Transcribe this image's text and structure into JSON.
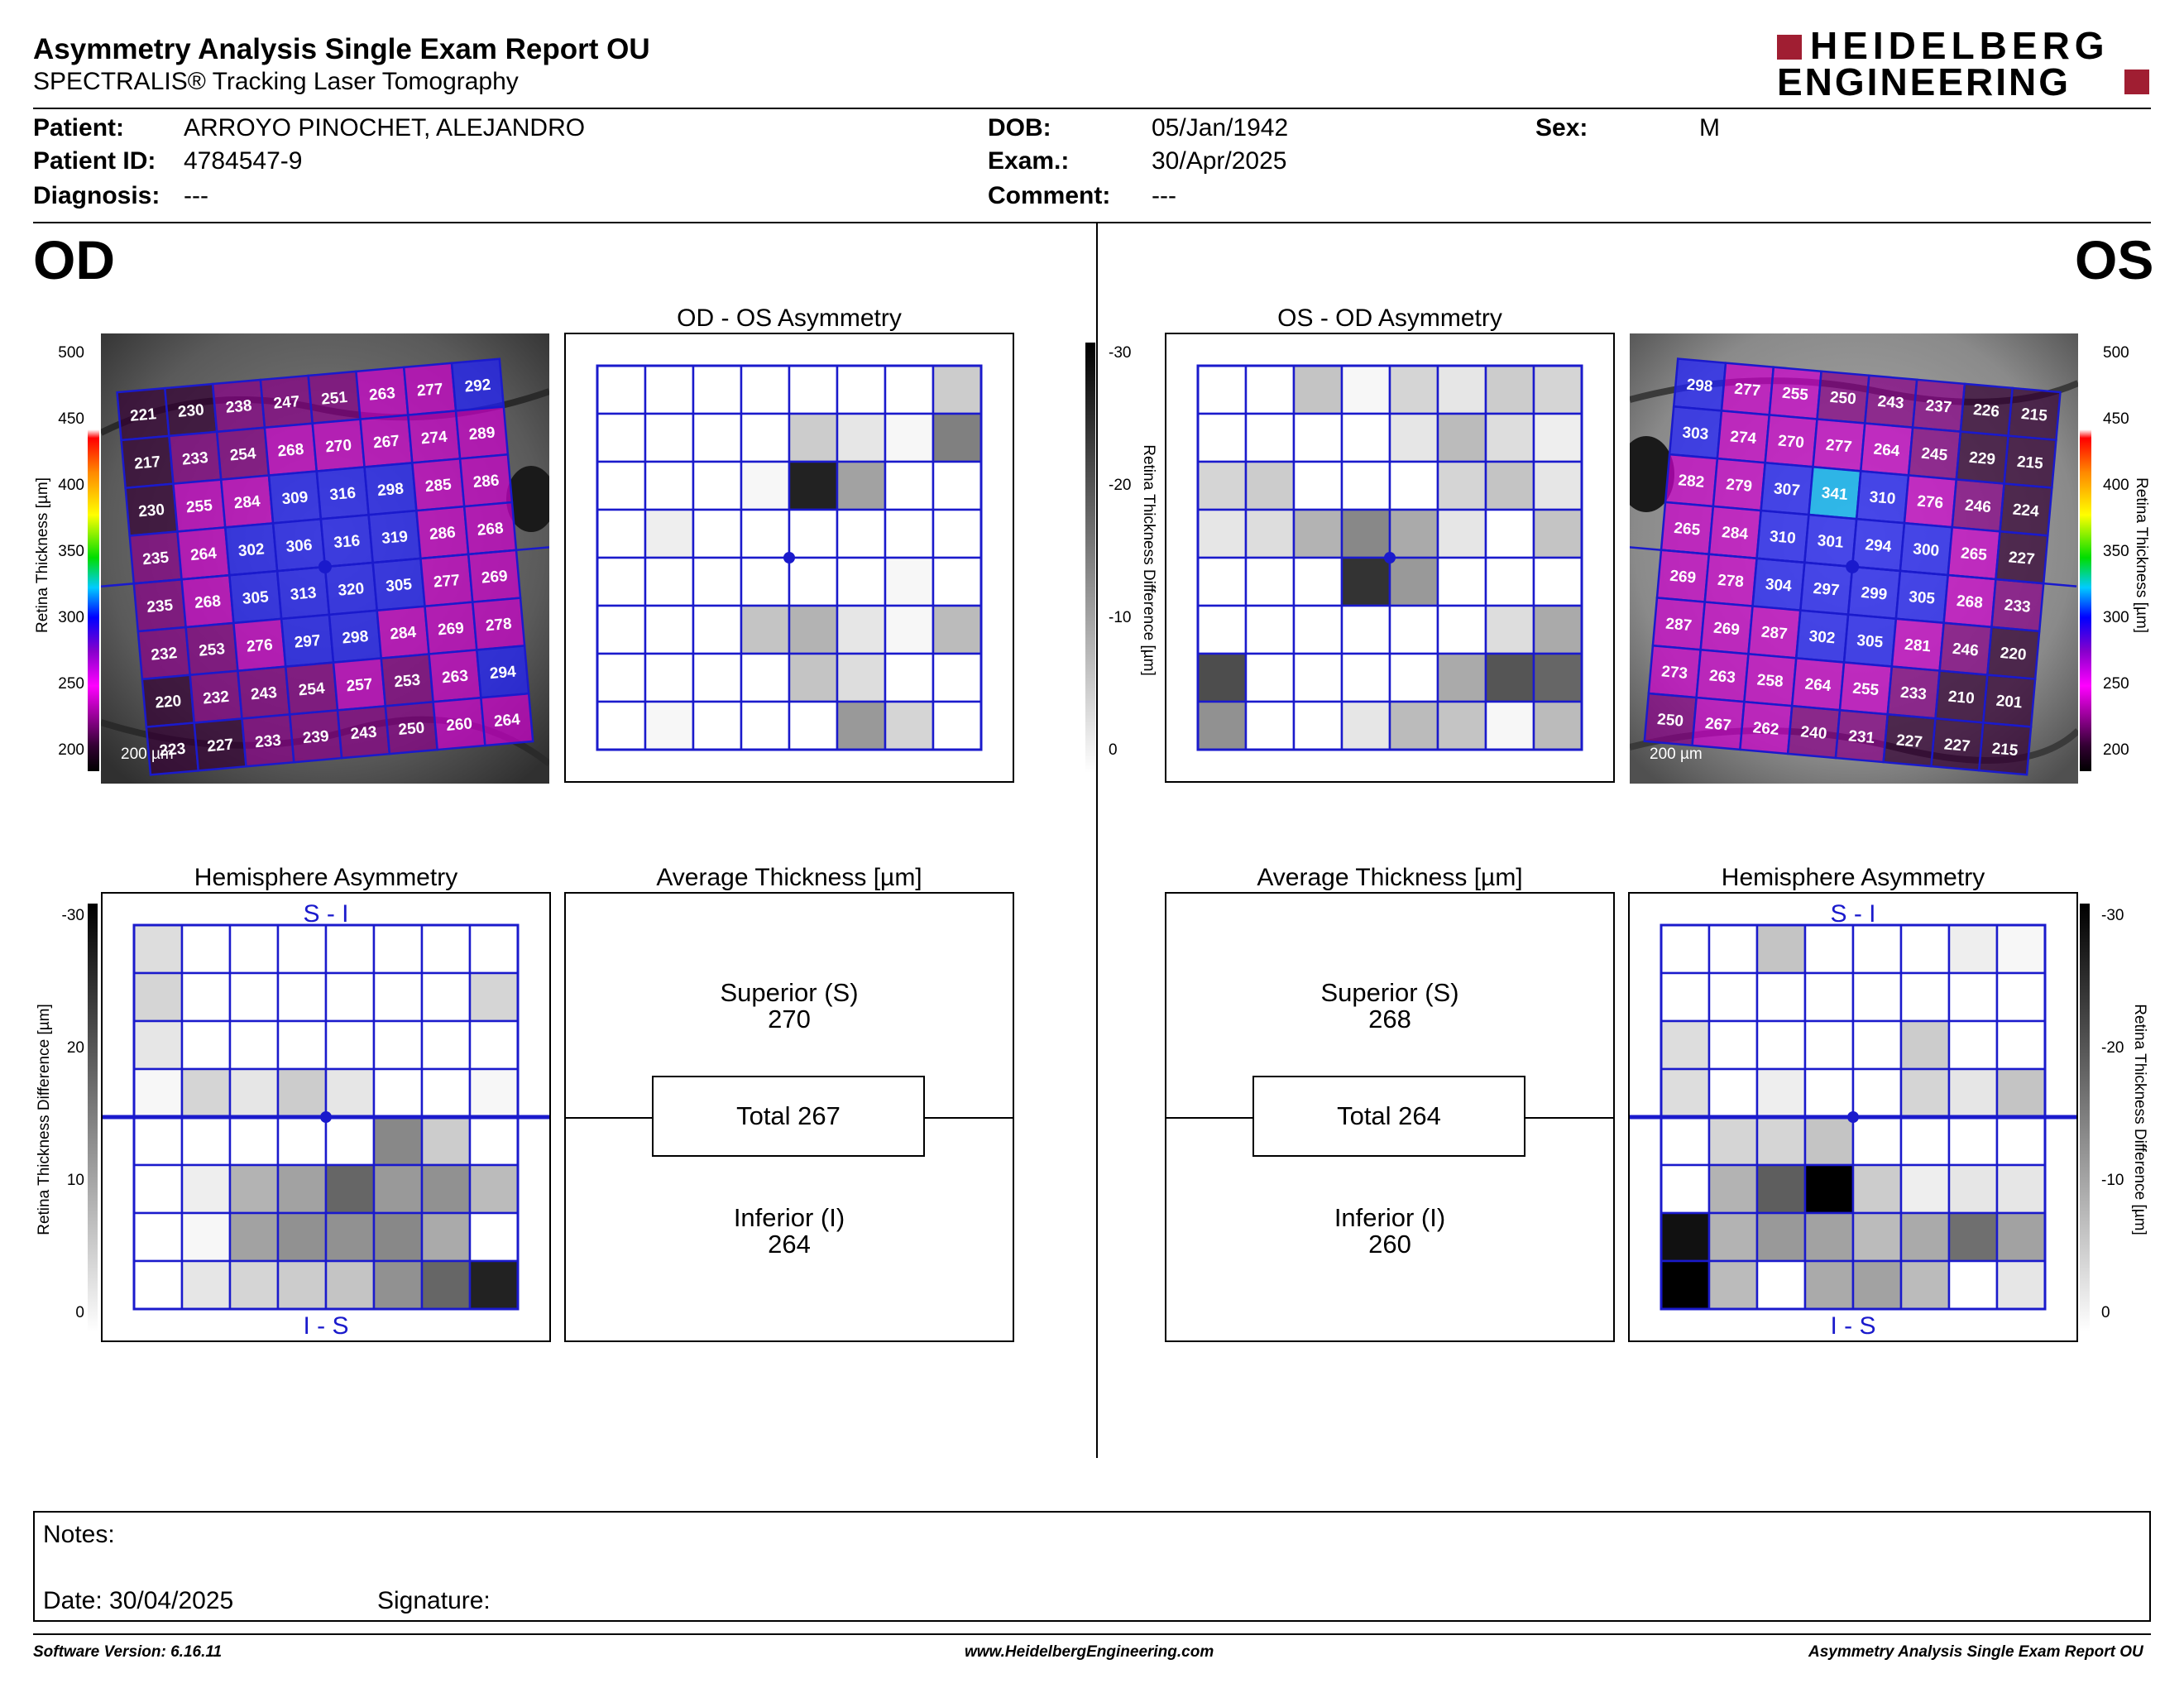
{
  "header": {
    "title": "Asymmetry Analysis Single Exam Report OU",
    "subtitle": "SPECTRALIS® Tracking Laser Tomography",
    "logo_line1": "HEIDELBERG",
    "logo_line2": "ENGINEERING"
  },
  "patient": {
    "patient_label": "Patient:",
    "patient_value": "ARROYO PINOCHET, ALEJANDRO",
    "id_label": "Patient ID:",
    "id_value": "4784547-9",
    "diagnosis_label": "Diagnosis:",
    "diagnosis_value": "---",
    "dob_label": "DOB:",
    "dob_value": "05/Jan/1942",
    "exam_label": "Exam.:",
    "exam_value": "30/Apr/2025",
    "comment_label": "Comment:",
    "comment_value": "---",
    "sex_label": "Sex:",
    "sex_value": "M"
  },
  "od": {
    "eye_label": "OD",
    "asym_title": "OD - OS Asymmetry",
    "hemi_title": "Hemisphere Asymmetry",
    "avg_title": "Average Thickness [µm]",
    "superior_label": "Superior (S)",
    "superior_value": "270",
    "total_label": "Total 267",
    "inferior_label": "Inferior (I)",
    "inferior_value": "264",
    "scale": "200 µm",
    "hemi_top": "S - I",
    "hemi_bottom": "I - S",
    "thickness": [
      [
        221,
        230,
        238,
        247,
        251,
        263,
        277,
        292
      ],
      [
        217,
        233,
        254,
        268,
        270,
        267,
        274,
        289
      ],
      [
        230,
        255,
        284,
        309,
        316,
        298,
        285,
        286
      ],
      [
        235,
        264,
        302,
        306,
        316,
        319,
        286,
        268
      ],
      [
        235,
        268,
        305,
        313,
        320,
        305,
        277,
        269
      ],
      [
        232,
        253,
        276,
        297,
        298,
        284,
        269,
        278
      ],
      [
        220,
        232,
        243,
        254,
        257,
        253,
        263,
        294
      ],
      [
        223,
        227,
        233,
        239,
        243,
        250,
        260,
        264
      ]
    ],
    "asym_gray": [
      [
        0,
        0,
        0,
        0,
        0,
        0,
        0,
        6
      ],
      [
        0,
        0,
        0,
        0,
        6,
        3,
        1,
        15
      ],
      [
        0,
        0,
        0,
        1,
        26,
        11,
        0,
        0
      ],
      [
        0,
        2,
        0,
        0,
        0,
        0,
        0,
        0
      ],
      [
        0,
        0,
        0,
        0,
        0,
        0,
        1,
        0
      ],
      [
        0,
        0,
        0,
        7,
        9,
        3,
        1,
        8
      ],
      [
        0,
        0,
        0,
        0,
        7,
        4,
        0,
        0
      ],
      [
        0,
        1,
        0,
        0,
        0,
        12,
        5,
        0
      ]
    ],
    "hemi_gray": [
      [
        4,
        0,
        0,
        0,
        0,
        0,
        0,
        0
      ],
      [
        5,
        0,
        0,
        0,
        0,
        0,
        0,
        5
      ],
      [
        3,
        0,
        0,
        0,
        0,
        0,
        0,
        0
      ],
      [
        1,
        5,
        3,
        6,
        3,
        0,
        0,
        1
      ],
      [
        0,
        0,
        0,
        0,
        0,
        14,
        6,
        0
      ],
      [
        0,
        2,
        9,
        11,
        18,
        12,
        13,
        8
      ],
      [
        0,
        1,
        11,
        13,
        13,
        14,
        10,
        0
      ],
      [
        0,
        3,
        5,
        6,
        7,
        13,
        18,
        26
      ]
    ]
  },
  "os": {
    "eye_label": "OS",
    "asym_title": "OS - OD Asymmetry",
    "hemi_title": "Hemisphere Asymmetry",
    "avg_title": "Average Thickness [µm]",
    "superior_label": "Superior (S)",
    "superior_value": "268",
    "total_label": "Total 264",
    "inferior_label": "Inferior (I)",
    "inferior_value": "260",
    "scale": "200 µm",
    "hemi_top": "S - I",
    "hemi_bottom": "I - S",
    "thickness": [
      [
        298,
        277,
        255,
        250,
        243,
        237,
        226,
        215
      ],
      [
        303,
        274,
        270,
        277,
        264,
        245,
        229,
        215
      ],
      [
        282,
        279,
        307,
        341,
        310,
        276,
        246,
        224
      ],
      [
        265,
        284,
        310,
        301,
        294,
        300,
        265,
        227
      ],
      [
        269,
        278,
        304,
        297,
        299,
        305,
        268,
        233
      ],
      [
        287,
        269,
        287,
        302,
        305,
        281,
        246,
        220
      ],
      [
        273,
        263,
        258,
        264,
        255,
        233,
        210,
        201
      ],
      [
        250,
        267,
        262,
        240,
        231,
        227,
        227,
        215
      ]
    ],
    "asym_gray": [
      [
        0,
        0,
        7,
        1,
        5,
        3,
        6,
        5
      ],
      [
        0,
        0,
        0,
        0,
        3,
        8,
        4,
        2
      ],
      [
        5,
        6,
        0,
        0,
        0,
        5,
        7,
        3
      ],
      [
        3,
        4,
        9,
        14,
        10,
        3,
        0,
        7
      ],
      [
        0,
        0,
        0,
        24,
        12,
        0,
        0,
        0
      ],
      [
        0,
        0,
        0,
        0,
        0,
        0,
        4,
        10
      ],
      [
        21,
        0,
        0,
        0,
        0,
        10,
        20,
        18
      ],
      [
        13,
        0,
        0,
        3,
        8,
        7,
        1,
        8
      ]
    ],
    "hemi_gray": [
      [
        0,
        0,
        7,
        0,
        0,
        0,
        2,
        1
      ],
      [
        0,
        0,
        0,
        0,
        0,
        0,
        0,
        0
      ],
      [
        4,
        0,
        0,
        0,
        0,
        6,
        0,
        0
      ],
      [
        4,
        0,
        2,
        0,
        0,
        5,
        3,
        7
      ],
      [
        0,
        5,
        5,
        7,
        0,
        0,
        0,
        0
      ],
      [
        0,
        9,
        19,
        30,
        6,
        2,
        3,
        3
      ],
      [
        28,
        9,
        12,
        11,
        8,
        10,
        17,
        11
      ],
      [
        30,
        8,
        0,
        10,
        11,
        8,
        0,
        3
      ]
    ]
  },
  "scales": {
    "thickness_ticks": [
      "500",
      "450",
      "400",
      "350",
      "300",
      "250",
      "200"
    ],
    "thickness_label": "Retina Thickness [µm]",
    "diff_ticks": [
      "-30",
      "-20",
      "-10",
      "0"
    ],
    "diff_ticks_left": [
      "-30",
      "20",
      "10",
      "0"
    ],
    "diff_label": "Retina Thickness Difference [µm]"
  },
  "notes": {
    "notes_label": "Notes:",
    "date_label": "Date: 30/04/2025",
    "signature_label": "Signature:"
  },
  "footer": {
    "software": "Software Version: 6.16.11",
    "website": "www.HeidelbergEngineering.com",
    "report": "Asymmetry Analysis Single Exam Report OU"
  },
  "colors": {
    "grid_blue": "#1a1acc",
    "logo_red": "#a01e32"
  }
}
